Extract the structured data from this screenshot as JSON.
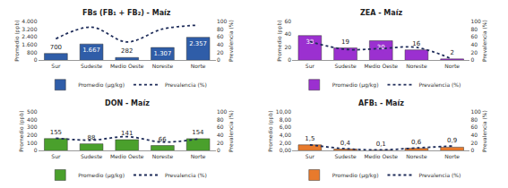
{
  "chart_data": [
    {
      "type": "bar",
      "title": "FBs (FB₁ + FB₂) - Maíz",
      "categories": [
        "Sur",
        "Sudeste",
        "Medio Oeste",
        "Noreste",
        "Norte"
      ],
      "y_label": "Promedio (ppb)",
      "y2_label": "Prevalencia (%)",
      "ylim": [
        0,
        4000
      ],
      "yticks": [
        0,
        800,
        {
          "value": 1600,
          "label": "1.600"
        },
        {
          "value": 2400,
          "label": "2.400"
        },
        {
          "value": 3200,
          "label": "3.200"
        },
        {
          "value": 4000,
          "label": "4.000"
        }
      ],
      "y2lim": [
        0,
        100
      ],
      "y2ticks": [
        0,
        20,
        40,
        60,
        80,
        100
      ],
      "grid": false,
      "legend": "bottom",
      "data_labels": true,
      "series": [
        {
          "name": "Promedio (µg/kg)",
          "type": "bar",
          "color": "#2f5da8",
          "values": [
            700,
            1667,
            282,
            1307,
            2357
          ],
          "value_labels": [
            "700",
            "1.667",
            "282",
            "1.307",
            "2.357"
          ]
        },
        {
          "name": "Prevalencia (%)",
          "type": "line",
          "axis": "y2",
          "color": "#1f2d5a",
          "line_style": "dotted",
          "values": [
            55,
            85,
            47,
            80,
            90
          ]
        }
      ]
    },
    {
      "type": "bar",
      "title": "ZEA - Maíz",
      "categories": [
        "Sur",
        "Sudeste",
        "Medio Oeste",
        "Noreste",
        "Norte"
      ],
      "y_label": "Promedio (ppb)",
      "y2_label": "Prevalencia (%)",
      "ylim": [
        0,
        60
      ],
      "yticks": [
        0,
        20,
        40,
        60
      ],
      "y2lim": [
        0,
        100
      ],
      "y2ticks": [
        0,
        20,
        40,
        60,
        80,
        100
      ],
      "grid": false,
      "legend": "bottom",
      "data_labels": true,
      "series": [
        {
          "name": "Promedio (µg/kg)",
          "type": "bar",
          "color": "#9b30d0",
          "values": [
            38,
            19,
            30,
            16,
            2
          ]
        },
        {
          "name": "Prevalencia (%)",
          "type": "line",
          "axis": "y2",
          "color": "#1f2d5a",
          "line_style": "dotted",
          "values": [
            48,
            28,
            30,
            33,
            3
          ]
        }
      ]
    },
    {
      "type": "bar",
      "title": "DON - Maíz",
      "categories": [
        "Sur",
        "Sudeste",
        "Medio Oeste",
        "Noreste",
        "Norte"
      ],
      "y_label": "Promedio (ppb)",
      "y2_label": "Prevalencia (%)",
      "ylim": [
        0,
        500
      ],
      "yticks": [
        0,
        100,
        200,
        300,
        400,
        500
      ],
      "y2lim": [
        0,
        100
      ],
      "y2ticks": [
        0,
        20,
        40,
        60,
        80,
        100
      ],
      "grid": false,
      "legend": "bottom",
      "data_labels": true,
      "series": [
        {
          "name": "Promedio (µg/kg)",
          "type": "bar",
          "color": "#4aa02c",
          "values": [
            155,
            88,
            141,
            66,
            154
          ]
        },
        {
          "name": "Prevalencia (%)",
          "type": "line",
          "axis": "y2",
          "color": "#1f2d5a",
          "line_style": "dotted",
          "values": [
            32,
            27,
            36,
            22,
            30
          ]
        }
      ]
    },
    {
      "type": "bar",
      "title": "AFB₁ - Maíz",
      "categories": [
        "Sur",
        "Sudeste",
        "Medio Oeste",
        "Noreste",
        "Norte"
      ],
      "y_label": "Promedio (ppb)",
      "y2_label": "Prevalencia (%)",
      "ylim": [
        0,
        10
      ],
      "yticks": [
        {
          "value": 0,
          "label": "0,00"
        },
        {
          "value": 2,
          "label": "2,00"
        },
        {
          "value": 4,
          "label": "4,00"
        },
        {
          "value": 6,
          "label": "6,00"
        },
        {
          "value": 8,
          "label": "8,00"
        },
        {
          "value": 10,
          "label": "10,00"
        }
      ],
      "y2lim": [
        0,
        100
      ],
      "y2ticks": [
        0,
        20,
        40,
        60,
        80,
        100
      ],
      "grid": false,
      "legend": "bottom",
      "data_labels": true,
      "series": [
        {
          "name": "Promedio (µg/kg)",
          "type": "bar",
          "color": "#e87a2c",
          "values": [
            1.5,
            0.4,
            0.1,
            0.6,
            0.9
          ],
          "value_labels": [
            "1,5",
            "0,4",
            "0,1",
            "0,6",
            "0,9"
          ]
        },
        {
          "name": "Prevalencia (%)",
          "type": "line",
          "axis": "y2",
          "color": "#1f2d5a",
          "line_style": "dotted",
          "values": [
            15,
            5,
            2,
            7,
            12
          ]
        }
      ]
    }
  ]
}
